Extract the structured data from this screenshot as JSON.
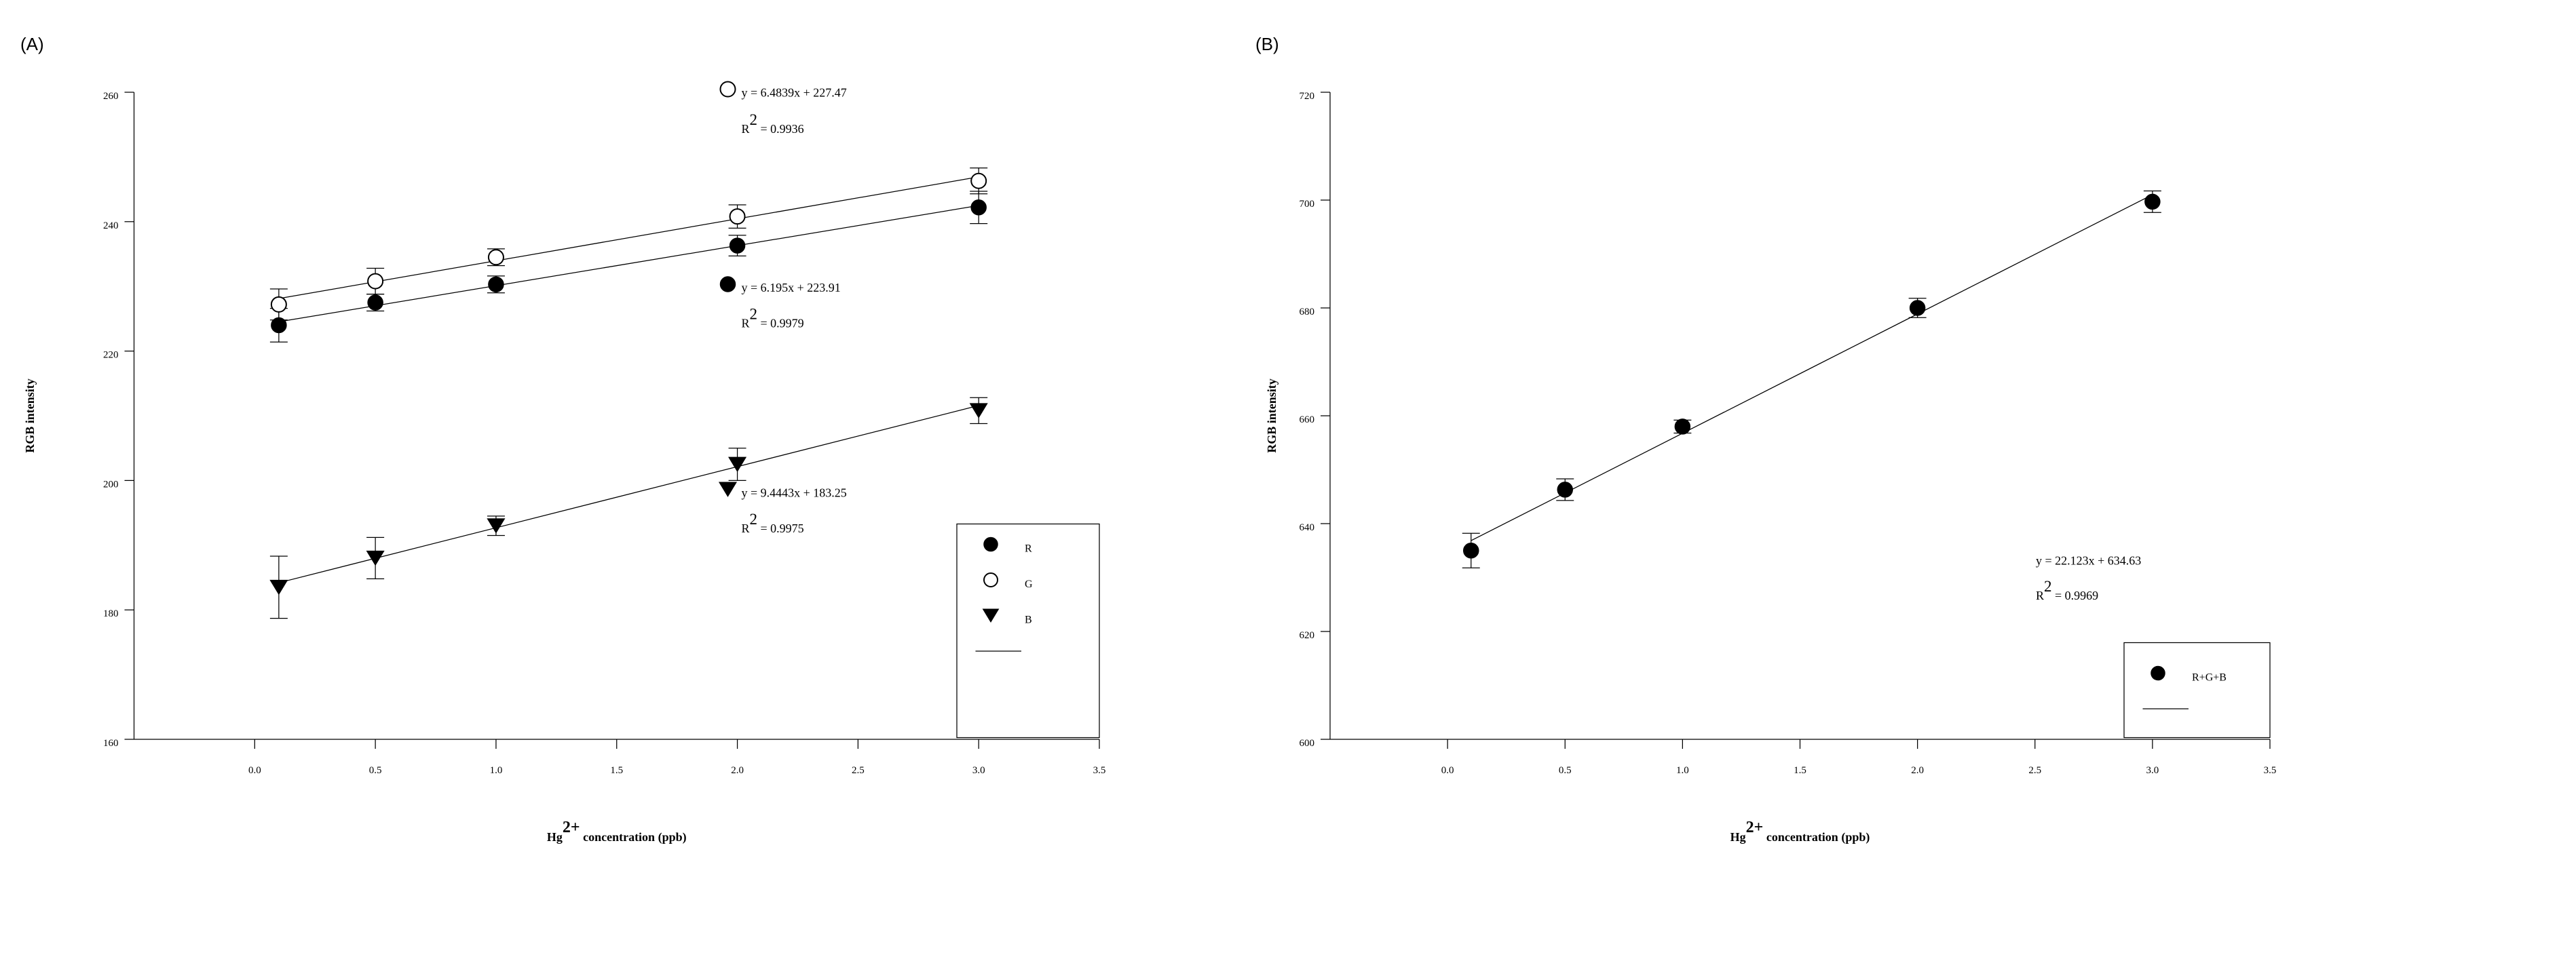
{
  "chart_data": [
    {
      "panel_label": "(A)",
      "type": "scatter",
      "xlabel_prefix": "Hg",
      "xlabel_sup": "2+",
      "xlabel_suffix": " concentration (ppb)",
      "ylabel": "RGB intensity",
      "xlim": [
        -0.5,
        3.5
      ],
      "ylim": [
        160,
        260
      ],
      "xticks": [
        0.0,
        0.5,
        1.0,
        1.5,
        2.0,
        2.5,
        3.0,
        3.5
      ],
      "xtick_labels": [
        "0.0",
        "0.5",
        "1.0",
        "1.5",
        "2.0",
        "2.5",
        "3.0",
        "3.5"
      ],
      "yticks": [
        160,
        180,
        200,
        220,
        240,
        260
      ],
      "ytick_labels": [
        "160",
        "180",
        "200",
        "220",
        "240",
        "260"
      ],
      "x": [
        0.1,
        0.5,
        1.0,
        2.0,
        3.0
      ],
      "series": [
        {
          "name": "R",
          "marker": "circle-filled",
          "values": [
            224.0,
            227.5,
            230.3,
            236.3,
            242.2
          ],
          "errors": [
            2.6,
            1.3,
            1.3,
            1.6,
            2.5
          ],
          "fit": {
            "slope": 6.195,
            "intercept": 223.91
          }
        },
        {
          "name": "G",
          "marker": "circle-open",
          "values": [
            227.2,
            230.8,
            234.5,
            240.8,
            246.3
          ],
          "errors": [
            2.4,
            2.0,
            1.3,
            1.8,
            2.0
          ],
          "fit": {
            "slope": 6.4839,
            "intercept": 227.47
          }
        },
        {
          "name": "B",
          "marker": "triangle-down",
          "values": [
            183.5,
            188.0,
            193.0,
            202.5,
            210.8
          ],
          "errors": [
            4.8,
            3.2,
            1.5,
            2.5,
            2.0
          ],
          "fit": {
            "slope": 9.4443,
            "intercept": 183.25
          }
        }
      ],
      "annotations": [
        {
          "series": "G",
          "equation": "y = 6.4839x + 227.47",
          "r2_value": " = 0.9936"
        },
        {
          "series": "R",
          "equation": "y = 6.195x + 223.91",
          "r2_value": " = 0.9979"
        },
        {
          "series": "B",
          "equation": "y = 9.4443x + 183.25",
          "r2_value": " = 0.9975"
        }
      ],
      "legend": [
        "R",
        "G",
        "B"
      ],
      "legend_position": "bottom-right"
    },
    {
      "panel_label": "(B)",
      "type": "scatter",
      "xlabel_prefix": "Hg",
      "xlabel_sup": "2+",
      "xlabel_suffix": " concentration (ppb)",
      "ylabel": "RGB intensity",
      "xlim": [
        -0.5,
        3.5
      ],
      "ylim": [
        600,
        720
      ],
      "xticks": [
        0.0,
        0.5,
        1.0,
        1.5,
        2.0,
        2.5,
        3.0,
        3.5
      ],
      "xtick_labels": [
        "0.0",
        "0.5",
        "1.0",
        "1.5",
        "2.0",
        "2.5",
        "3.0",
        "3.5"
      ],
      "yticks": [
        600,
        620,
        640,
        660,
        680,
        700,
        720
      ],
      "ytick_labels": [
        "600",
        "620",
        "640",
        "660",
        "680",
        "700",
        "720"
      ],
      "x": [
        0.1,
        0.5,
        1.0,
        2.0,
        3.0
      ],
      "series": [
        {
          "name": "R+G+B",
          "marker": "circle-filled",
          "values": [
            635.0,
            646.3,
            658.0,
            680.0,
            699.7
          ],
          "errors": [
            3.2,
            2.0,
            1.2,
            1.8,
            2.0
          ],
          "fit": {
            "slope": 22.123,
            "intercept": 634.63
          }
        }
      ],
      "annotations": [
        {
          "series": "R+G+B",
          "equation": "y = 22.123x + 634.63",
          "r2_value": " = 0.9969"
        }
      ],
      "legend": [
        "R+G+B"
      ],
      "legend_position": "bottom-right"
    }
  ],
  "r2_base": "R",
  "r2_sup": "2"
}
